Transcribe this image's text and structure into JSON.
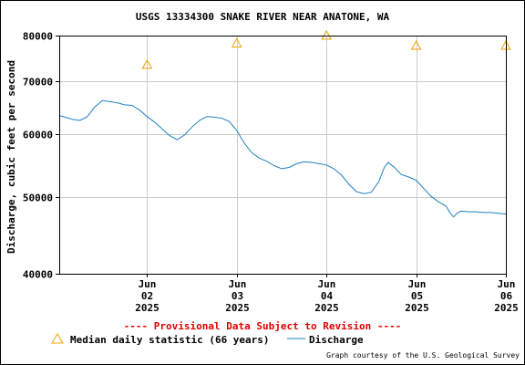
{
  "title": "USGS 13334300 SNAKE RIVER NEAR ANATONE, WA",
  "footer": {
    "provisional": "---- Provisional Data Subject to Revision ----",
    "credit": "Graph courtesy of the U.S. Geological Survey"
  },
  "legend": {
    "median_label": "Median daily statistic (66 years)",
    "discharge_label": "Discharge"
  },
  "colors": {
    "median": "#f0a000",
    "discharge": "#2080c0",
    "grid": "#cccccc",
    "provisional": "#e00000"
  },
  "chart_data": {
    "type": "line",
    "ylabel": "Discharge, cubic feet per second",
    "y_scale": "log",
    "ylim": [
      40000,
      80000
    ],
    "y_ticks": [
      {
        "value": 40000,
        "label": "40000"
      },
      {
        "value": 50000,
        "label": "50000"
      },
      {
        "value": 60000,
        "label": "60000"
      },
      {
        "value": 70000,
        "label": "70000"
      },
      {
        "value": 80000,
        "label": "80000"
      }
    ],
    "xlim": [
      "2025-06-01T12:30",
      "2025-06-06T12:00"
    ],
    "x_ticks": [
      {
        "value": "2025-06-02",
        "month": "Jun",
        "day": "02",
        "year": "2025"
      },
      {
        "value": "2025-06-03",
        "month": "Jun",
        "day": "03",
        "year": "2025"
      },
      {
        "value": "2025-06-04",
        "month": "Jun",
        "day": "04",
        "year": "2025"
      },
      {
        "value": "2025-06-05",
        "month": "Jun",
        "day": "05",
        "year": "2025"
      },
      {
        "value": "2025-06-06",
        "month": "Jun",
        "day": "06",
        "year": "2025"
      }
    ],
    "grid": true,
    "series": [
      {
        "name": "Discharge",
        "points": [
          [
            "2025-06-01T12:30",
            63400
          ],
          [
            "2025-06-01T14:00",
            63100
          ],
          [
            "2025-06-01T16:00",
            62700
          ],
          [
            "2025-06-01T18:00",
            62500
          ],
          [
            "2025-06-01T20:00",
            63200
          ],
          [
            "2025-06-01T22:00",
            65000
          ],
          [
            "2025-06-02T00:00",
            66200
          ],
          [
            "2025-06-02T02:00",
            66000
          ],
          [
            "2025-06-02T04:00",
            65800
          ],
          [
            "2025-06-02T06:00",
            65400
          ],
          [
            "2025-06-02T08:00",
            65300
          ],
          [
            "2025-06-02T10:00",
            64400
          ],
          [
            "2025-06-02T12:00",
            63200
          ],
          [
            "2025-06-02T14:00",
            62200
          ],
          [
            "2025-06-02T16:00",
            61000
          ],
          [
            "2025-06-02T18:00",
            59800
          ],
          [
            "2025-06-02T20:00",
            59100
          ],
          [
            "2025-06-02T22:00",
            59900
          ],
          [
            "2025-06-03T00:00",
            61300
          ],
          [
            "2025-06-03T02:00",
            62500
          ],
          [
            "2025-06-03T04:00",
            63200
          ],
          [
            "2025-06-03T06:00",
            63100
          ],
          [
            "2025-06-03T08:00",
            62900
          ],
          [
            "2025-06-03T10:00",
            62300
          ],
          [
            "2025-06-03T12:00",
            60700
          ],
          [
            "2025-06-03T14:00",
            58500
          ],
          [
            "2025-06-03T16:00",
            56900
          ],
          [
            "2025-06-03T18:00",
            56000
          ],
          [
            "2025-06-03T20:00",
            55500
          ],
          [
            "2025-06-03T22:00",
            54800
          ],
          [
            "2025-06-04T00:00",
            54300
          ],
          [
            "2025-06-04T02:00",
            54500
          ],
          [
            "2025-06-04T04:00",
            55100
          ],
          [
            "2025-06-04T06:00",
            55400
          ],
          [
            "2025-06-04T08:00",
            55300
          ],
          [
            "2025-06-04T10:00",
            55100
          ],
          [
            "2025-06-04T12:00",
            54900
          ],
          [
            "2025-06-04T14:00",
            54300
          ],
          [
            "2025-06-04T16:00",
            53300
          ],
          [
            "2025-06-04T18:00",
            51900
          ],
          [
            "2025-06-04T20:00",
            50800
          ],
          [
            "2025-06-04T22:00",
            50500
          ],
          [
            "2025-06-05T00:00",
            50700
          ],
          [
            "2025-06-05T02:00",
            52300
          ],
          [
            "2025-06-05T03:30",
            54500
          ],
          [
            "2025-06-05T04:30",
            55300
          ],
          [
            "2025-06-05T06:00",
            54600
          ],
          [
            "2025-06-05T08:00",
            53400
          ],
          [
            "2025-06-05T10:00",
            53000
          ],
          [
            "2025-06-05T12:00",
            52500
          ],
          [
            "2025-06-05T14:00",
            51300
          ],
          [
            "2025-06-05T16:00",
            50100
          ],
          [
            "2025-06-05T18:00",
            49300
          ],
          [
            "2025-06-05T20:00",
            48700
          ],
          [
            "2025-06-05T21:00",
            47800
          ],
          [
            "2025-06-05T22:00",
            47200
          ],
          [
            "2025-06-05T23:00",
            47700
          ],
          [
            "2025-06-06T00:00",
            48000
          ],
          [
            "2025-06-06T02:00",
            47900
          ],
          [
            "2025-06-06T04:00",
            47900
          ],
          [
            "2025-06-06T06:00",
            47800
          ],
          [
            "2025-06-06T08:00",
            47800
          ],
          [
            "2025-06-06T10:00",
            47700
          ],
          [
            "2025-06-06T12:00",
            47600
          ]
        ]
      },
      {
        "name": "Median daily statistic (66 years)",
        "marker": "triangle",
        "points": [
          [
            "2025-06-02T00:00",
            73500
          ],
          [
            "2025-06-03T00:00",
            78200
          ],
          [
            "2025-06-04T00:00",
            80000
          ],
          [
            "2025-06-05T00:00",
            77700
          ],
          [
            "2025-06-06T00:00",
            77700
          ]
        ]
      }
    ]
  }
}
